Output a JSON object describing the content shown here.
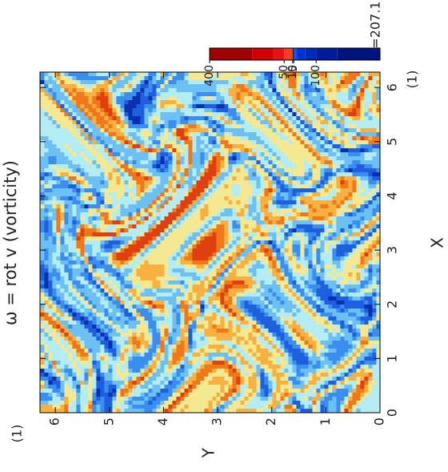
{
  "chart_data": {
    "type": "heatmap",
    "title": "ω = rot v (vorticity)",
    "xlabel": "X",
    "ylabel": "Y",
    "xunit": "(1)",
    "yunit": "(1)",
    "time_label": "t=207.1",
    "xlim": [
      0,
      6.283
    ],
    "ylim": [
      0,
      6.283
    ],
    "xticks": [
      0,
      1,
      2,
      3,
      4,
      5,
      6
    ],
    "yticks": [
      0,
      1,
      2,
      3,
      4,
      5,
      6
    ],
    "colorbar": {
      "lim": [
        400,
        -400
      ],
      "ticks": [
        400,
        50,
        10,
        5,
        -100
      ],
      "levels": [
        400,
        200,
        100,
        50,
        10,
        5,
        -5,
        -10,
        -50,
        -100,
        -200,
        -400
      ],
      "colors": [
        "#a00000",
        "#d00000",
        "#e81010",
        "#f04020",
        "#101010",
        "#0050e0",
        "#1040f0",
        "#0030d0",
        "#0028b8",
        "#001c9c",
        "#001480"
      ]
    }
  }
}
